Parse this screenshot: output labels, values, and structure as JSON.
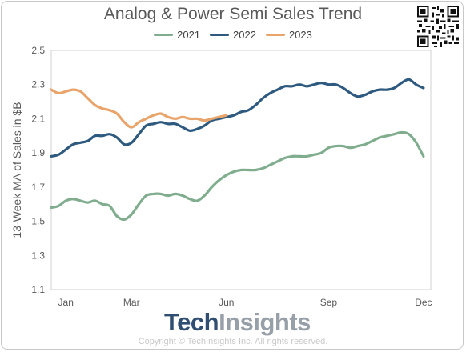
{
  "chart_data": {
    "type": "line",
    "title": "Analog & Power Semi Sales Trend",
    "xlabel": "",
    "ylabel": "13-Week MA of Sales in $B",
    "ylim": [
      1.1,
      2.5
    ],
    "yticks": [
      "1.1",
      "1.3",
      "1.5",
      "1.7",
      "1.9",
      "2.1",
      "2.3",
      "2.5"
    ],
    "xlim": [
      0,
      52
    ],
    "xticks": [
      {
        "label": "Jan",
        "week": 2
      },
      {
        "label": "Mar",
        "week": 11
      },
      {
        "label": "Jun",
        "week": 24
      },
      {
        "label": "Sep",
        "week": 38
      },
      {
        "label": "Dec",
        "week": 51
      }
    ],
    "legend_position": "top-center",
    "grid": false,
    "series": [
      {
        "name": "2021",
        "color": "#7fad8e",
        "x": [
          0,
          1,
          2,
          3,
          4,
          5,
          6,
          7,
          8,
          9,
          10,
          11,
          12,
          13,
          14,
          15,
          16,
          17,
          18,
          19,
          20,
          21,
          22,
          23,
          24,
          25,
          26,
          27,
          28,
          29,
          30,
          31,
          32,
          33,
          34,
          35,
          36,
          37,
          38,
          39,
          40,
          41,
          42,
          43,
          44,
          45,
          46,
          47,
          48,
          49,
          50,
          51
        ],
        "values": [
          1.58,
          1.59,
          1.62,
          1.63,
          1.62,
          1.61,
          1.62,
          1.6,
          1.59,
          1.53,
          1.51,
          1.54,
          1.6,
          1.65,
          1.66,
          1.66,
          1.65,
          1.66,
          1.65,
          1.63,
          1.62,
          1.65,
          1.7,
          1.74,
          1.77,
          1.79,
          1.8,
          1.8,
          1.8,
          1.81,
          1.83,
          1.85,
          1.87,
          1.88,
          1.88,
          1.88,
          1.89,
          1.9,
          1.93,
          1.94,
          1.94,
          1.93,
          1.94,
          1.95,
          1.97,
          1.99,
          2.0,
          2.01,
          2.02,
          2.01,
          1.96,
          1.88
        ]
      },
      {
        "name": "2022",
        "color": "#2f5a80",
        "x": [
          0,
          1,
          2,
          3,
          4,
          5,
          6,
          7,
          8,
          9,
          10,
          11,
          12,
          13,
          14,
          15,
          16,
          17,
          18,
          19,
          20,
          21,
          22,
          23,
          24,
          25,
          26,
          27,
          28,
          29,
          30,
          31,
          32,
          33,
          34,
          35,
          36,
          37,
          38,
          39,
          40,
          41,
          42,
          43,
          44,
          45,
          46,
          47,
          48,
          49,
          50,
          51
        ],
        "values": [
          1.88,
          1.89,
          1.92,
          1.95,
          1.96,
          1.97,
          2.0,
          2.0,
          2.01,
          1.99,
          1.95,
          1.96,
          2.01,
          2.06,
          2.07,
          2.08,
          2.07,
          2.07,
          2.05,
          2.03,
          2.04,
          2.06,
          2.09,
          2.1,
          2.11,
          2.12,
          2.14,
          2.15,
          2.18,
          2.22,
          2.25,
          2.27,
          2.29,
          2.29,
          2.3,
          2.29,
          2.3,
          2.31,
          2.3,
          2.3,
          2.28,
          2.25,
          2.23,
          2.24,
          2.26,
          2.27,
          2.27,
          2.28,
          2.31,
          2.33,
          2.3,
          2.28
        ]
      },
      {
        "name": "2023",
        "color": "#e8a46a",
        "x": [
          0,
          1,
          2,
          3,
          4,
          5,
          6,
          7,
          8,
          9,
          10,
          11,
          12,
          13,
          14,
          15,
          16,
          17,
          18,
          19,
          20,
          21,
          22,
          23,
          24
        ],
        "values": [
          2.27,
          2.25,
          2.26,
          2.27,
          2.26,
          2.22,
          2.18,
          2.16,
          2.15,
          2.13,
          2.08,
          2.05,
          2.08,
          2.1,
          2.12,
          2.13,
          2.11,
          2.1,
          2.11,
          2.1,
          2.1,
          2.09,
          2.1,
          2.11,
          2.12
        ]
      }
    ]
  },
  "brand": {
    "part1": "Tech",
    "part2": "Insights"
  },
  "copyright": "Copyright © TechInsights Inc.  All rights reserved.",
  "qr_icon": "qr-code-icon"
}
